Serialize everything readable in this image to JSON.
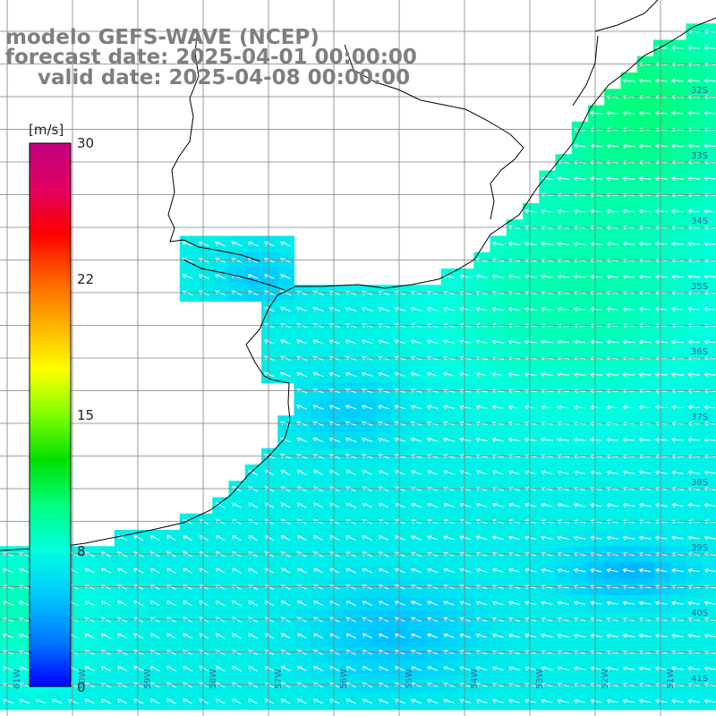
{
  "title": {
    "line1": "modelo GEFS-WAVE (NCEP)",
    "line2": "forecast date: 2025-04-01 00:00:00",
    "line3": "valid date: 2025-04-08 00:00:00"
  },
  "colorbar": {
    "unit": "[m/s]",
    "ticks": [
      "30",
      "22",
      "15",
      "8",
      "0"
    ],
    "tick_values": [
      30,
      22,
      15,
      8,
      0
    ],
    "range": [
      0,
      30
    ],
    "colors": [
      "#0000ff",
      "#0078ff",
      "#00c8ff",
      "#00ffe0",
      "#00ff80",
      "#00e000",
      "#80ff00",
      "#ffff00",
      "#ffb000",
      "#ff6000",
      "#ff0000",
      "#e00060",
      "#c00080"
    ]
  },
  "map": {
    "variable": "wind speed and direction",
    "lat_labels": [
      "32S",
      "33S",
      "34S",
      "35S",
      "36S",
      "37S",
      "38S",
      "39S",
      "40S",
      "41S"
    ],
    "lon_labels": [
      "61W",
      "60W",
      "59W",
      "58W",
      "57W",
      "56W",
      "55W",
      "54W",
      "53W",
      "52W",
      "51W"
    ],
    "wind_speed_range_ms": [
      4,
      11
    ],
    "dominant_wind_direction": "from the northeast and east",
    "colors": {
      "land": "#ffffff",
      "coastline": "#000000",
      "grid": "#808080",
      "arrows": "#ffffff"
    }
  }
}
